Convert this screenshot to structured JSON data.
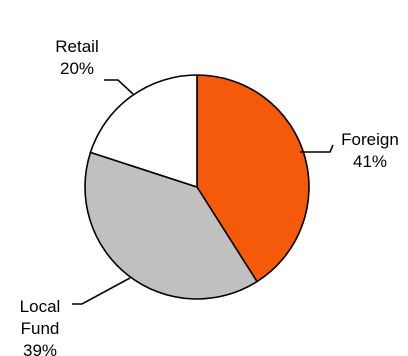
{
  "chart_data": {
    "type": "pie",
    "title": "",
    "title_partial": "ᐧ ᐧ ᐧ ,ᐧ ᐧ ᐧ   (ᐧ ᐧ ᐧ ᐧ ᐧ ᐧ ᐧ ᐧ )",
    "slices": [
      {
        "label_lines": [
          "Foreign"
        ],
        "percent_label": "41%",
        "value": 41,
        "color": "#f55a0a"
      },
      {
        "label_lines": [
          "Local",
          "Fund"
        ],
        "percent_label": "39%",
        "value": 39,
        "color": "#c0c0c0"
      },
      {
        "label_lines": [
          "Retail"
        ],
        "percent_label": "20%",
        "value": 20,
        "color": "#ffffff"
      }
    ]
  }
}
